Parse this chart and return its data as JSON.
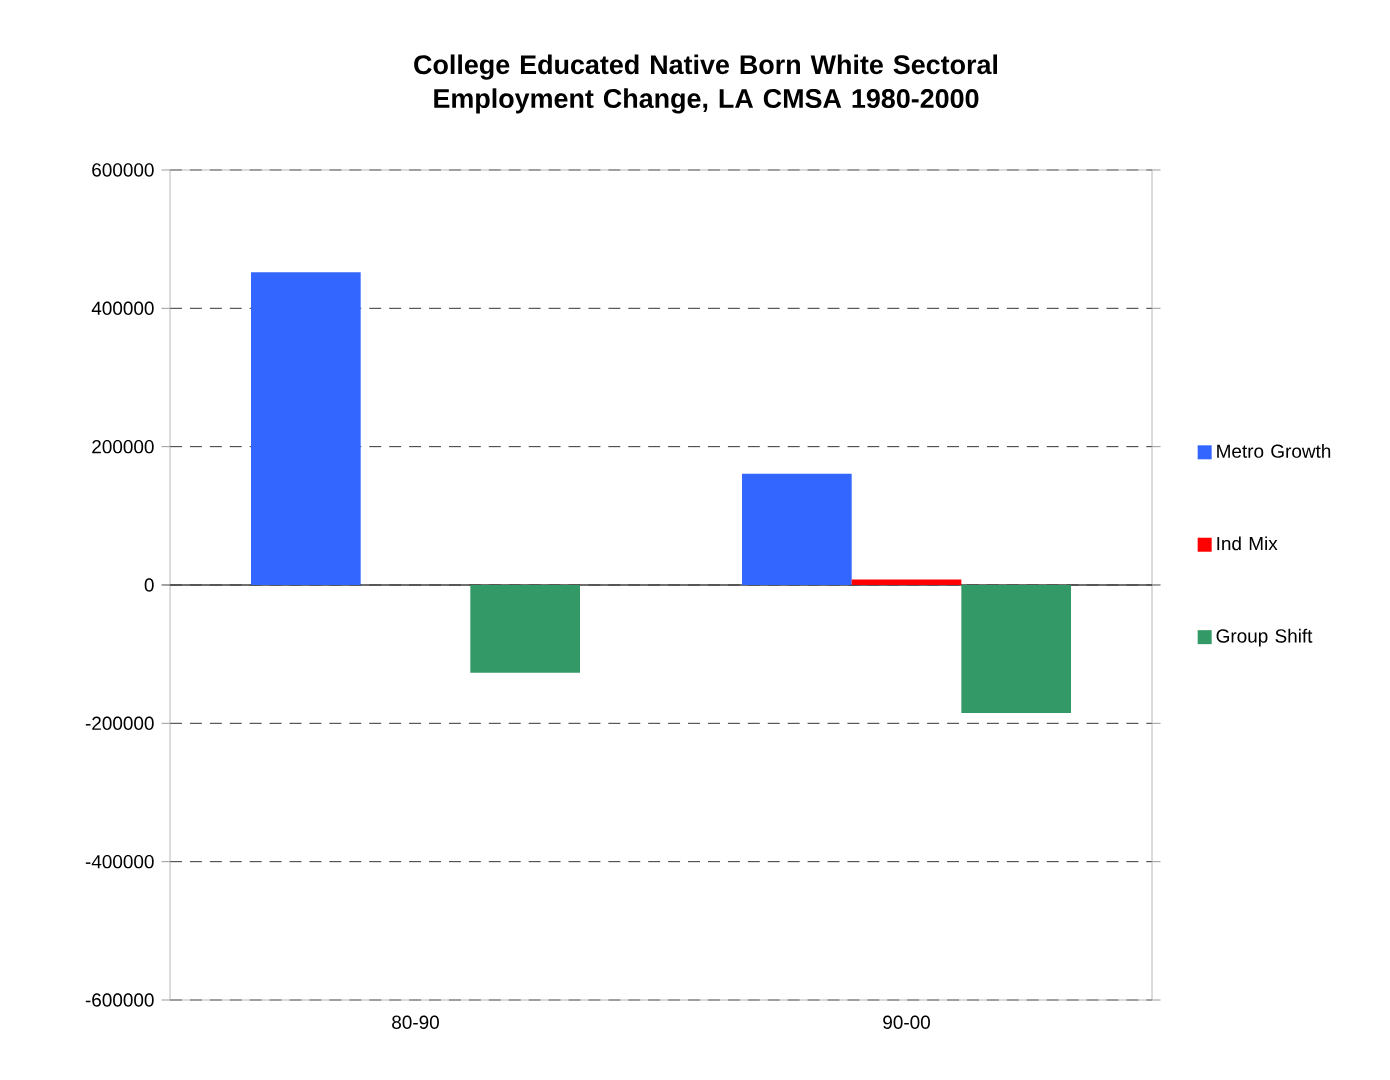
{
  "chart_data": {
    "type": "bar",
    "title": "College Educated Native Born White Sectoral Employment Change, LA CMSA 1980-2000",
    "categories": [
      "80-90",
      "90-00"
    ],
    "series": [
      {
        "name": "Metro Growth",
        "color": "#3366ff",
        "values": [
          452000,
          161000
        ]
      },
      {
        "name": "Ind Mix",
        "color": "#ff0000",
        "values": [
          0,
          8000
        ]
      },
      {
        "name": "Group Shift",
        "color": "#339966",
        "values": [
          -127000,
          -185000
        ]
      }
    ],
    "ylim": [
      -600000,
      600000
    ],
    "yticks": [
      -600000,
      -400000,
      -200000,
      0,
      200000,
      400000,
      600000
    ],
    "grid": "y",
    "legend": "right"
  }
}
